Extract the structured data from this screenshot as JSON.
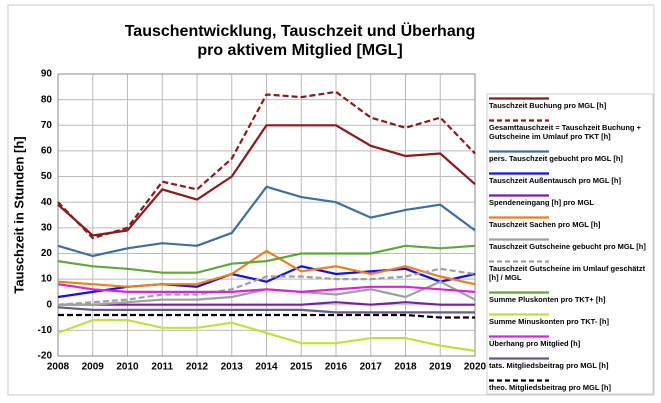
{
  "chart_data": {
    "type": "line",
    "title": [
      "Tauschentwicklung, Tauschzeit und Überhang",
      "pro aktivem Mitglied [MGL]"
    ],
    "ylabel": "Tauschzeit in Stunden [h]",
    "x": [
      2008,
      2009,
      2010,
      2011,
      2012,
      2013,
      2014,
      2015,
      2016,
      2017,
      2018,
      2019,
      2020
    ],
    "xlim": [
      2008,
      2020
    ],
    "xticks": [
      2008,
      2009,
      2010,
      2011,
      2012,
      2013,
      2014,
      2015,
      2016,
      2017,
      2018,
      2019,
      2020
    ],
    "ylim": [
      -20,
      90
    ],
    "yticks": [
      -20,
      -10,
      0,
      10,
      20,
      30,
      40,
      50,
      60,
      70,
      80,
      90
    ],
    "grid": true,
    "legend": "right",
    "series": [
      {
        "name": "Tauschzeit Buchung pro MGL [h]",
        "color": "#8b1a1a",
        "dash": false,
        "values": [
          39,
          27,
          29,
          45,
          41,
          50,
          70,
          70,
          70,
          62,
          58,
          59,
          47
        ]
      },
      {
        "name": "Gesamttauschzeit = Tauschzeit Buchung + Gutscheine im Umlauf pro TKT [h]",
        "color": "#8b1a1a",
        "dash": true,
        "values": [
          40,
          26,
          30,
          48,
          45,
          57,
          82,
          81,
          83,
          73,
          69,
          73,
          59
        ]
      },
      {
        "name": "pers. Tauschzeit gebucht pro MGL [h]",
        "color": "#3f6fa0",
        "dash": false,
        "values": [
          23,
          19,
          22,
          24,
          23,
          28,
          46,
          42,
          40,
          34,
          37,
          39,
          29
        ]
      },
      {
        "name": "Tauschzeit Außentausch pro MGL [h]",
        "color": "#1010f0",
        "dash": false,
        "values": [
          3,
          5,
          7,
          8,
          7,
          12,
          9,
          15,
          12,
          13,
          14,
          9,
          12
        ]
      },
      {
        "name": "Spendeneingang [h] pro MGL",
        "color": "#7a1fa2",
        "dash": false,
        "values": [
          0,
          0,
          0,
          0,
          0,
          0,
          0,
          0,
          1,
          0,
          1,
          0,
          0
        ]
      },
      {
        "name": "Tauschzeit Sachen pro MGL [h]",
        "color": "#f07f1b",
        "dash": false,
        "values": [
          9,
          8,
          7,
          8,
          8,
          12,
          21,
          13,
          15,
          12,
          15,
          11,
          8
        ]
      },
      {
        "name": "Tauschzeit Gutscheine gebucht pro MGL [h]",
        "color": "#a0a0a0",
        "dash": false,
        "values": [
          0,
          0,
          1,
          2,
          2,
          3,
          6,
          5,
          4,
          6,
          3,
          9,
          2
        ]
      },
      {
        "name": "Tauschzeit Gutscheine im Umlauf geschätzt [h] / MGL",
        "color": "#a0a0a0",
        "dash": true,
        "values": [
          0,
          1,
          2,
          4,
          4,
          6,
          11,
          11,
          10,
          10,
          11,
          14,
          12
        ]
      },
      {
        "name": "Summe Pluskonten pro TKT+ [h]",
        "color": "#5fa83a",
        "dash": false,
        "values": [
          17,
          15,
          14,
          12.5,
          12.5,
          16,
          17,
          20,
          20,
          20,
          23,
          22,
          23
        ]
      },
      {
        "name": "Summe Minuskonten pro TKT- [h]",
        "color": "#c2e03a",
        "dash": false,
        "values": [
          -11,
          -6,
          -6,
          -9,
          -9,
          -7,
          -11,
          -15,
          -15,
          -13,
          -13,
          -16,
          -18
        ]
      },
      {
        "name": "Überhang pro Mitglied [h]",
        "color": "#e020e0",
        "dash": false,
        "values": [
          8,
          6,
          5,
          5,
          5,
          5,
          6,
          5,
          6,
          7,
          7,
          6,
          5
        ]
      },
      {
        "name": "tats. Mitgliedsbeitrag pro MGL [h]",
        "color": "#6a5a8a",
        "dash": false,
        "values": [
          -1,
          -2,
          -2,
          -2,
          -2,
          -2,
          -2,
          -2,
          -3,
          -3,
          -3,
          -3,
          -3
        ]
      },
      {
        "name": "theo. Mitgliedsbeitrag pro MGL [h]",
        "color": "#000000",
        "dash": true,
        "values": [
          -4,
          -4,
          -4,
          -4,
          -4,
          -4,
          -4,
          -4,
          -4,
          -4,
          -4,
          -5,
          -5
        ]
      }
    ]
  }
}
